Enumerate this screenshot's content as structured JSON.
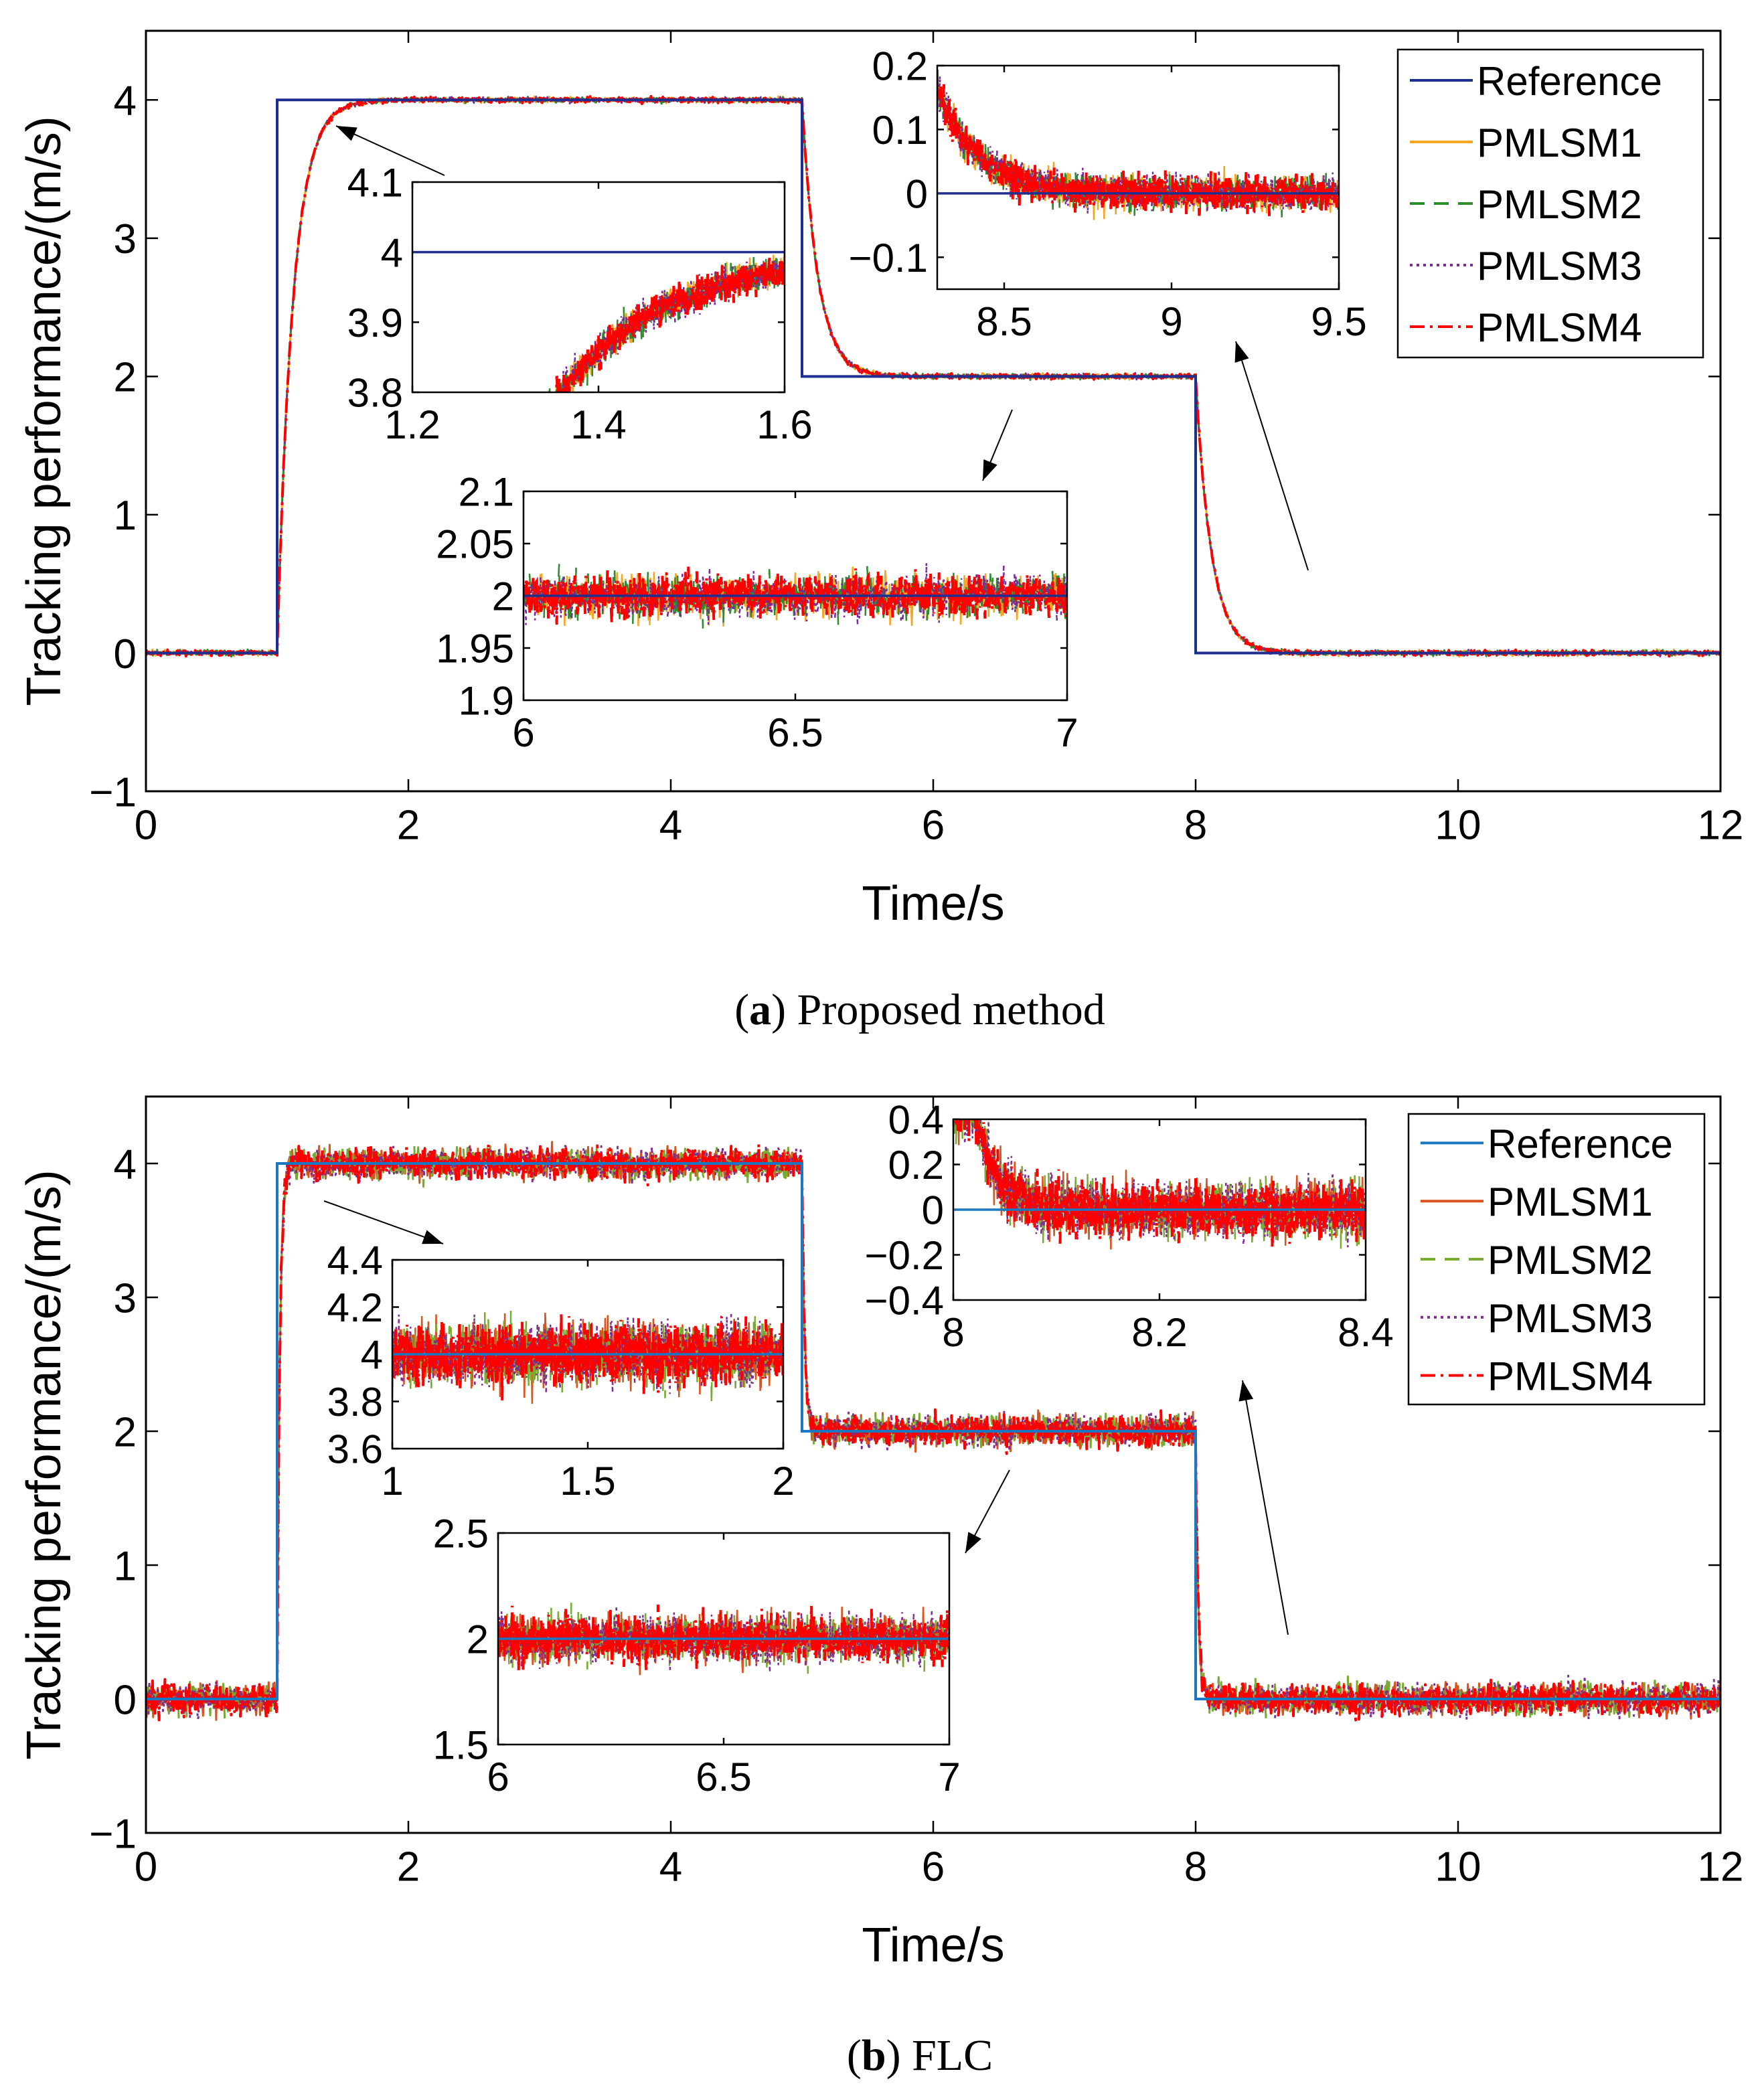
{
  "chart_data": [
    {
      "type": "line",
      "caption_label": "a",
      "caption_text": "Proposed method",
      "xlabel": "Time/s",
      "ylabel": "Tracking performance/(m/s)",
      "xlim": [
        0,
        12
      ],
      "ylim": [
        -1,
        4.5
      ],
      "xticks": [
        0,
        2,
        4,
        6,
        8,
        10,
        12
      ],
      "yticks": [
        -1,
        0,
        1,
        2,
        3,
        4
      ],
      "xtick_labels": [
        "0",
        "2",
        "4",
        "6",
        "8",
        "10",
        "12"
      ],
      "ytick_labels": [
        "−1",
        "0",
        "1",
        "2",
        "3",
        "4"
      ],
      "legend": [
        "Reference",
        "PMLSM1",
        "PMLSM2",
        "PMLSM3",
        "PMLSM4"
      ],
      "legend_colors": [
        "#1f2f8f",
        "#f5a623",
        "#2e8b2e",
        "#7a2a9a",
        "#ff0000"
      ],
      "legend_dash": [
        "",
        "",
        "22,14",
        "4,6",
        "22,8,4,8"
      ],
      "reference": {
        "x": [
          0,
          1,
          1,
          5,
          5,
          8,
          8,
          12
        ],
        "y": [
          0,
          0,
          4,
          4,
          2,
          2,
          0,
          0
        ]
      },
      "step_times": [
        1,
        5,
        8
      ],
      "step_levels": [
        0,
        4,
        2,
        0
      ],
      "time_constant": 0.12,
      "noise": 0.02,
      "insets": [
        {
          "name": "rise",
          "xlim": [
            1.2,
            1.6
          ],
          "ylim": [
            3.8,
            4.1
          ],
          "xticks": [
            1.2,
            1.4,
            1.6
          ],
          "yticks": [
            3.8,
            3.9,
            4,
            4.1
          ],
          "xtick_labels": [
            "1.2",
            "1.4",
            "1.6"
          ],
          "ytick_labels": [
            "3.8",
            "3.9",
            "4",
            "4.1"
          ],
          "mode": "rise",
          "t0": 1,
          "from": 0,
          "to": 4,
          "tau": 0.12,
          "noise": 0.025
        },
        {
          "name": "steady",
          "xlim": [
            6,
            7
          ],
          "ylim": [
            1.9,
            2.1
          ],
          "xticks": [
            6,
            6.5,
            7
          ],
          "yticks": [
            1.9,
            1.95,
            2,
            2.05,
            2.1
          ],
          "xtick_labels": [
            "6",
            "6.5",
            "7"
          ],
          "ytick_labels": [
            "1.9",
            "1.95",
            "2",
            "2.05",
            "2.1"
          ],
          "mode": "steady",
          "level": 2,
          "noise": 0.022
        },
        {
          "name": "fall",
          "xlim": [
            8.3,
            9.5
          ],
          "ylim": [
            -0.15,
            0.2
          ],
          "xticks": [
            8.5,
            9,
            9.5
          ],
          "yticks": [
            -0.1,
            0,
            0.1,
            0.2
          ],
          "xtick_labels": [
            "8.5",
            "9",
            "9.5"
          ],
          "ytick_labels": [
            "−0.1",
            "0",
            "0.1",
            "0.2"
          ],
          "mode": "fall",
          "t0": 8,
          "from": 2,
          "to": 0,
          "tau": 0.12,
          "noise": 0.03
        }
      ]
    },
    {
      "type": "line",
      "caption_label": "b",
      "caption_text": "FLC",
      "xlabel": "Time/s",
      "ylabel": "Tracking performance/(m/s)",
      "xlim": [
        0,
        12
      ],
      "ylim": [
        -1,
        4.5
      ],
      "xticks": [
        0,
        2,
        4,
        6,
        8,
        10,
        12
      ],
      "yticks": [
        -1,
        0,
        1,
        2,
        3,
        4
      ],
      "xtick_labels": [
        "0",
        "2",
        "4",
        "6",
        "8",
        "10",
        "12"
      ],
      "ytick_labels": [
        "−1",
        "0",
        "1",
        "2",
        "3",
        "4"
      ],
      "legend": [
        "Reference",
        "PMLSM1",
        "PMLSM2",
        "PMLSM3",
        "PMLSM4"
      ],
      "legend_colors": [
        "#1a78c2",
        "#d9531e",
        "#77ac30",
        "#7e2f8e",
        "#ff0000"
      ],
      "legend_dash": [
        "",
        "",
        "22,14",
        "4,6",
        "22,8,4,8"
      ],
      "reference": {
        "x": [
          0,
          1,
          1,
          5,
          5,
          8,
          8,
          12
        ],
        "y": [
          0,
          0,
          4,
          4,
          2,
          2,
          0,
          0
        ]
      },
      "step_times": [
        1,
        5,
        8
      ],
      "step_levels": [
        0,
        4,
        2,
        0
      ],
      "time_constant": 0.02,
      "noise": 0.12,
      "insets": [
        {
          "name": "rise",
          "xlim": [
            1,
            2
          ],
          "ylim": [
            3.6,
            4.4
          ],
          "xticks": [
            1,
            1.5,
            2
          ],
          "yticks": [
            3.6,
            3.8,
            4,
            4.2,
            4.4
          ],
          "xtick_labels": [
            "1",
            "1.5",
            "2"
          ],
          "ytick_labels": [
            "3.6",
            "3.8",
            "4",
            "4.2",
            "4.4"
          ],
          "mode": "steady",
          "level": 4,
          "noise": 0.14
        },
        {
          "name": "steady",
          "xlim": [
            6,
            7
          ],
          "ylim": [
            1.5,
            2.5
          ],
          "xticks": [
            6,
            6.5,
            7
          ],
          "yticks": [
            1.5,
            2,
            2.5
          ],
          "xtick_labels": [
            "6",
            "6.5",
            "7"
          ],
          "ytick_labels": [
            "1.5",
            "2",
            "2.5"
          ],
          "mode": "steady",
          "level": 2,
          "noise": 0.12
        },
        {
          "name": "fall",
          "xlim": [
            8,
            8.4
          ],
          "ylim": [
            -0.4,
            0.4
          ],
          "xticks": [
            8,
            8.2,
            8.4
          ],
          "yticks": [
            -0.4,
            -0.2,
            0,
            0.2,
            0.4
          ],
          "xtick_labels": [
            "8",
            "8.2",
            "8.4"
          ],
          "ytick_labels": [
            "−0.4",
            "−0.2",
            "0",
            "0.2",
            "0.4"
          ],
          "mode": "fall",
          "t0": 8.02,
          "from": 0.45,
          "to": 0,
          "tau": 0.02,
          "noise": 0.13
        }
      ]
    }
  ]
}
